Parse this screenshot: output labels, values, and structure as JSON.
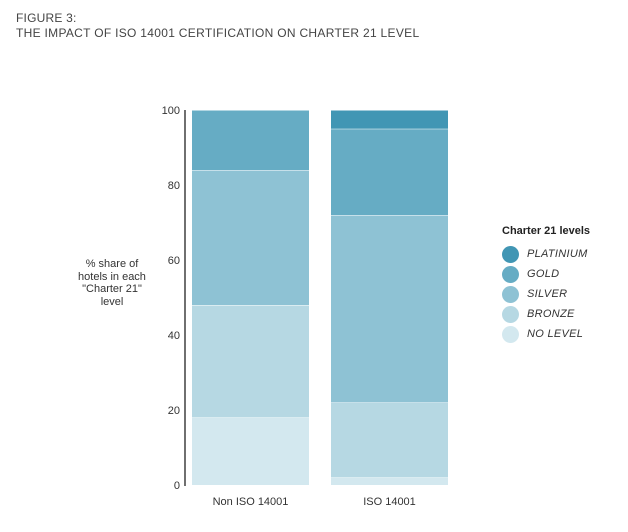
{
  "figure": {
    "label": "FIGURE 3:",
    "title": "THE IMPACT OF ISO 14001 CERTIFICATION ON CHARTER 21 LEVEL"
  },
  "chart_data": {
    "type": "bar",
    "stacked": true,
    "title": "THE IMPACT OF ISO 14001 CERTIFICATION ON CHARTER 21 LEVEL",
    "categories": [
      "Non ISO 14001",
      "ISO 14001"
    ],
    "ylabel_lines": [
      "% share of",
      "hotels in each",
      "\"Charter 21\"",
      "level"
    ],
    "ylim": [
      0,
      100
    ],
    "yticks": [
      0,
      20,
      40,
      60,
      80,
      100
    ],
    "grid": false,
    "legend_title": "Charter 21 levels",
    "legend_position": "right",
    "legend_order": [
      "PLATINIUM",
      "GOLD",
      "SILVER",
      "BRONZE",
      "NO LEVEL"
    ],
    "series": [
      {
        "name": "NO LEVEL",
        "color": "#d3e8ef",
        "values": [
          18,
          2
        ]
      },
      {
        "name": "BRONZE",
        "color": "#b6d8e3",
        "values": [
          30,
          20
        ]
      },
      {
        "name": "SILVER",
        "color": "#8ec2d4",
        "values": [
          36,
          50
        ]
      },
      {
        "name": "GOLD",
        "color": "#66acc4",
        "values": [
          16,
          23
        ]
      },
      {
        "name": "PLATINIUM",
        "color": "#4196b4",
        "values": [
          0,
          5
        ]
      }
    ]
  }
}
